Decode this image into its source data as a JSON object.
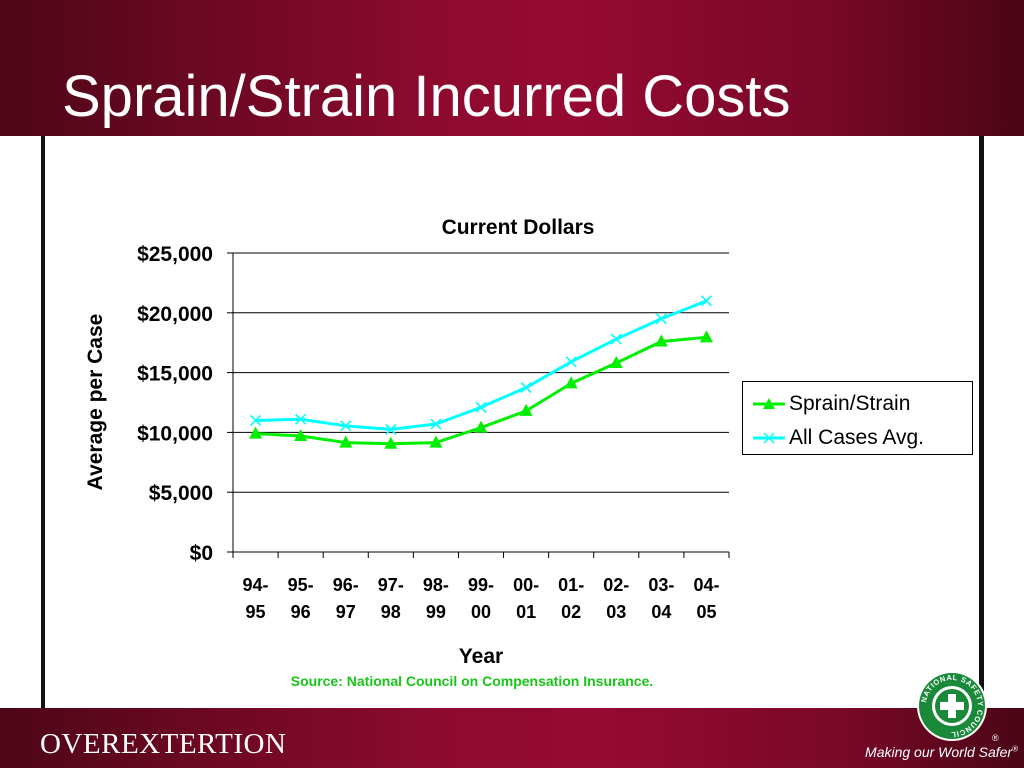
{
  "slide": {
    "title": "Sprain/Strain Incurred Costs",
    "footer_label": "OVEREXTERTION",
    "tagline": "Making our World Safer",
    "tagline_mark": "®",
    "logo_text": "NATIONAL SAFETY COUNCIL",
    "registered_mark": "®",
    "source_note": "Source: National Council on Compensation Insurance."
  },
  "colors": {
    "header_bg": "#8c0a2e",
    "sprain_series": "#00ee00",
    "all_cases_series": "#00ffff",
    "source_note": "#19c419",
    "logo_green": "#1a8a3a"
  },
  "chart_data": {
    "type": "line",
    "title": "Current Dollars",
    "xlabel": "Year",
    "ylabel": "Average per Case",
    "categories": [
      [
        "94-",
        "95"
      ],
      [
        "95-",
        "96"
      ],
      [
        "96-",
        "97"
      ],
      [
        "97-",
        "98"
      ],
      [
        "98-",
        "99"
      ],
      [
        "99-",
        "00"
      ],
      [
        "00-",
        "01"
      ],
      [
        "01-",
        "02"
      ],
      [
        "02-",
        "03"
      ],
      [
        "03-",
        "04"
      ],
      [
        "04-",
        "05"
      ]
    ],
    "ylim": [
      0,
      25000
    ],
    "y_ticks": [
      0,
      5000,
      10000,
      15000,
      20000,
      25000
    ],
    "y_tick_labels": [
      "$0",
      "$5,000",
      "$10,000",
      "$15,000",
      "$20,000",
      "$25,000"
    ],
    "grid": true,
    "legend_position": "right",
    "series": [
      {
        "name": "Sprain/Strain",
        "marker": "triangle",
        "color": "#00ee00",
        "values": [
          9900,
          9700,
          9150,
          9050,
          9150,
          10400,
          11800,
          14100,
          15800,
          17600,
          17950
        ]
      },
      {
        "name": "All Cases Avg.",
        "marker": "x",
        "color": "#00ffff",
        "values": [
          11000,
          11100,
          10550,
          10250,
          10700,
          12100,
          13750,
          15900,
          17800,
          19500,
          21000
        ]
      }
    ]
  }
}
